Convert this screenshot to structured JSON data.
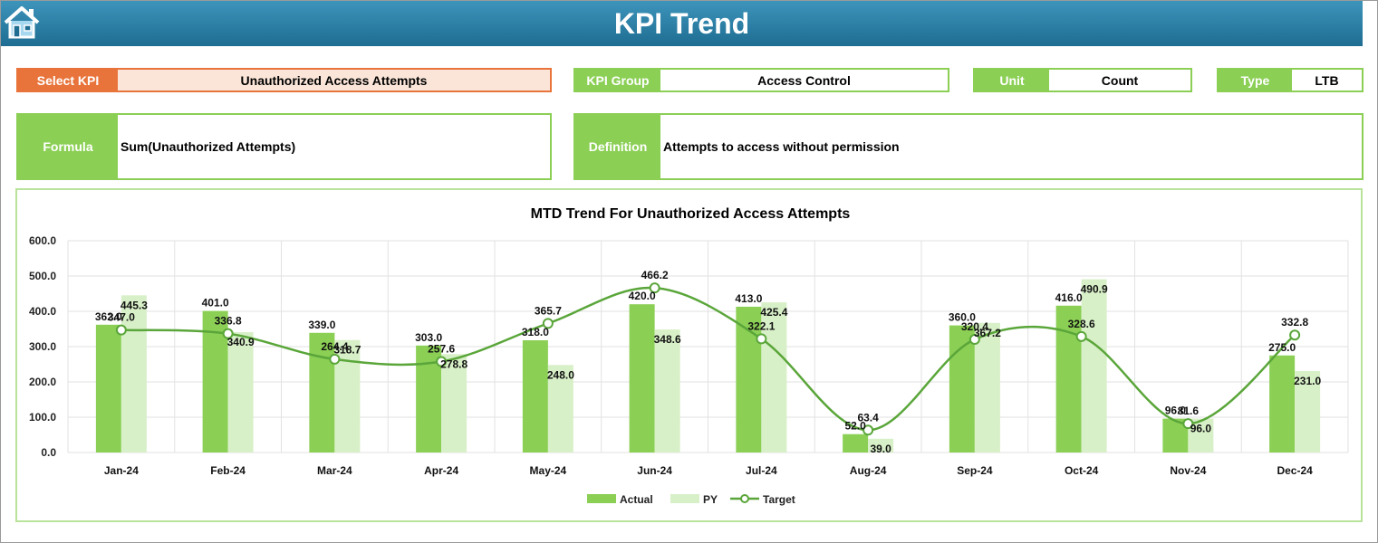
{
  "header": {
    "title": "KPI Trend",
    "home_icon": "home-icon"
  },
  "selectors": {
    "kpi": {
      "label": "Select KPI",
      "value": "Unauthorized Access Attempts"
    },
    "group": {
      "label": "KPI Group",
      "value": "Access Control"
    },
    "unit": {
      "label": "Unit",
      "value": "Count"
    },
    "type": {
      "label": "Type",
      "value": "LTB"
    }
  },
  "formula": {
    "label": "Formula",
    "value": "Sum(Unauthorized Attempts)"
  },
  "definition": {
    "label": "Definition",
    "value": "Attempts to access without permission"
  },
  "colors": {
    "actual": "#8bcf55",
    "py": "#d8f0c8",
    "target": "#5aa63a",
    "header": "#2a7fa8",
    "accent_orange": "#e8743b"
  },
  "chart_data": {
    "type": "bar",
    "title": "MTD Trend For Unauthorized Access Attempts",
    "categories": [
      "Jan-24",
      "Feb-24",
      "Mar-24",
      "Apr-24",
      "May-24",
      "Jun-24",
      "Jul-24",
      "Aug-24",
      "Sep-24",
      "Oct-24",
      "Nov-24",
      "Dec-24"
    ],
    "series": [
      {
        "name": "Actual",
        "values": [
          362.0,
          401.0,
          339.0,
          303.0,
          318.0,
          420.0,
          413.0,
          52.0,
          360.0,
          416.0,
          96.0,
          275.0
        ]
      },
      {
        "name": "PY",
        "values": [
          445.3,
          340.9,
          318.7,
          278.8,
          248.0,
          348.6,
          425.4,
          39.0,
          367.2,
          490.9,
          96.0,
          231.0
        ]
      },
      {
        "name": "Target",
        "type": "line",
        "values": [
          347.0,
          336.8,
          264.4,
          257.6,
          365.7,
          466.2,
          322.1,
          63.4,
          320.4,
          328.6,
          81.6,
          332.8
        ]
      }
    ],
    "ylim": [
      0,
      600
    ],
    "yticks": [
      "0.0",
      "100.0",
      "200.0",
      "300.0",
      "400.0",
      "500.0",
      "600.0"
    ],
    "grid": true,
    "legend": "bottom"
  }
}
